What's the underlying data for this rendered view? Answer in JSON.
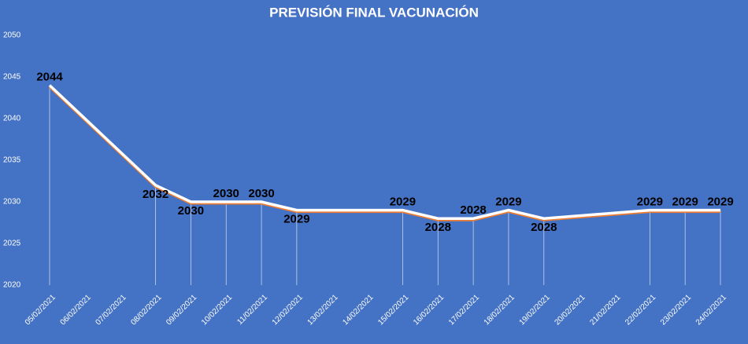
{
  "chart_data": {
    "type": "line",
    "title": "PREVISIÓN FINAL VACUNACIÓN",
    "xticks": [
      "05/02/2021",
      "06/02/2021",
      "07/02/2021",
      "08/02/2021",
      "09/02/2021",
      "10/02/2021",
      "11/02/2021",
      "12/02/2021",
      "13/02/2021",
      "14/02/2021",
      "15/02/2021",
      "16/02/2021",
      "17/02/2021",
      "18/02/2021",
      "19/02/2021",
      "20/02/2021",
      "21/02/2021",
      "22/02/2021",
      "23/02/2021",
      "24/02/2021"
    ],
    "x": [
      "05/02/2021",
      "08/02/2021",
      "09/02/2021",
      "10/02/2021",
      "11/02/2021",
      "12/02/2021",
      "15/02/2021",
      "16/02/2021",
      "17/02/2021",
      "18/02/2021",
      "19/02/2021",
      "22/02/2021",
      "23/02/2021",
      "24/02/2021"
    ],
    "values": [
      2044,
      2032,
      2030,
      2030,
      2030,
      2029,
      2029,
      2028,
      2028,
      2029,
      2028,
      2029,
      2029,
      2029
    ],
    "color": "#ffffff",
    "ylim": [
      2020,
      2050
    ],
    "yticks": [
      2020,
      2025,
      2030,
      2035,
      2040,
      2045,
      2050
    ]
  }
}
